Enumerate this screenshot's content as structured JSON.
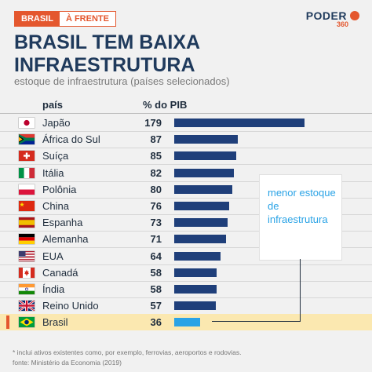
{
  "tag": {
    "section": "BRASIL",
    "label": "À FRENTE"
  },
  "logo": {
    "brand": "PODER",
    "number": "360"
  },
  "title": "BRASIL TEM BAIXA INFRAESTRUTURA",
  "subtitle": "estoque de infraestrutura (países selecionados)",
  "headers": {
    "country": "país",
    "value": "% do PIB"
  },
  "annotation": "menor estoque de infraestrutura",
  "footnote": "* inclui ativos existentes como, por exemplo, ferrovias, aeroportos e rodovias.",
  "source": "fonte: Ministério da Economia (2019)",
  "colors": {
    "bar": "#1f3f7a",
    "highlight_bar": "#2aa3e6",
    "highlight_row": "#fbe8b0",
    "accent": "#e4572e"
  },
  "chart_data": {
    "type": "bar",
    "orientation": "horizontal",
    "title": "BRASIL TEM BAIXA INFRAESTRUTURA",
    "subtitle": "estoque de infraestrutura (países selecionados)",
    "ylabel": "país",
    "xlabel": "% do PIB",
    "xlim": [
      0,
      179
    ],
    "categories": [
      "Japão",
      "África do Sul",
      "Suíça",
      "Itália",
      "Polônia",
      "China",
      "Espanha",
      "Alemanha",
      "EUA",
      "Canadá",
      "Índia",
      "Reino Unido",
      "Brasil"
    ],
    "values": [
      179,
      87,
      85,
      82,
      80,
      76,
      73,
      71,
      64,
      58,
      58,
      57,
      36
    ],
    "flags": [
      "japan-flag",
      "south-africa-flag",
      "switzerland-flag",
      "italy-flag",
      "poland-flag",
      "china-flag",
      "spain-flag",
      "germany-flag",
      "usa-flag",
      "canada-flag",
      "india-flag",
      "uk-flag",
      "brazil-flag"
    ],
    "highlight": "Brasil",
    "grid": false,
    "legend": "none"
  }
}
